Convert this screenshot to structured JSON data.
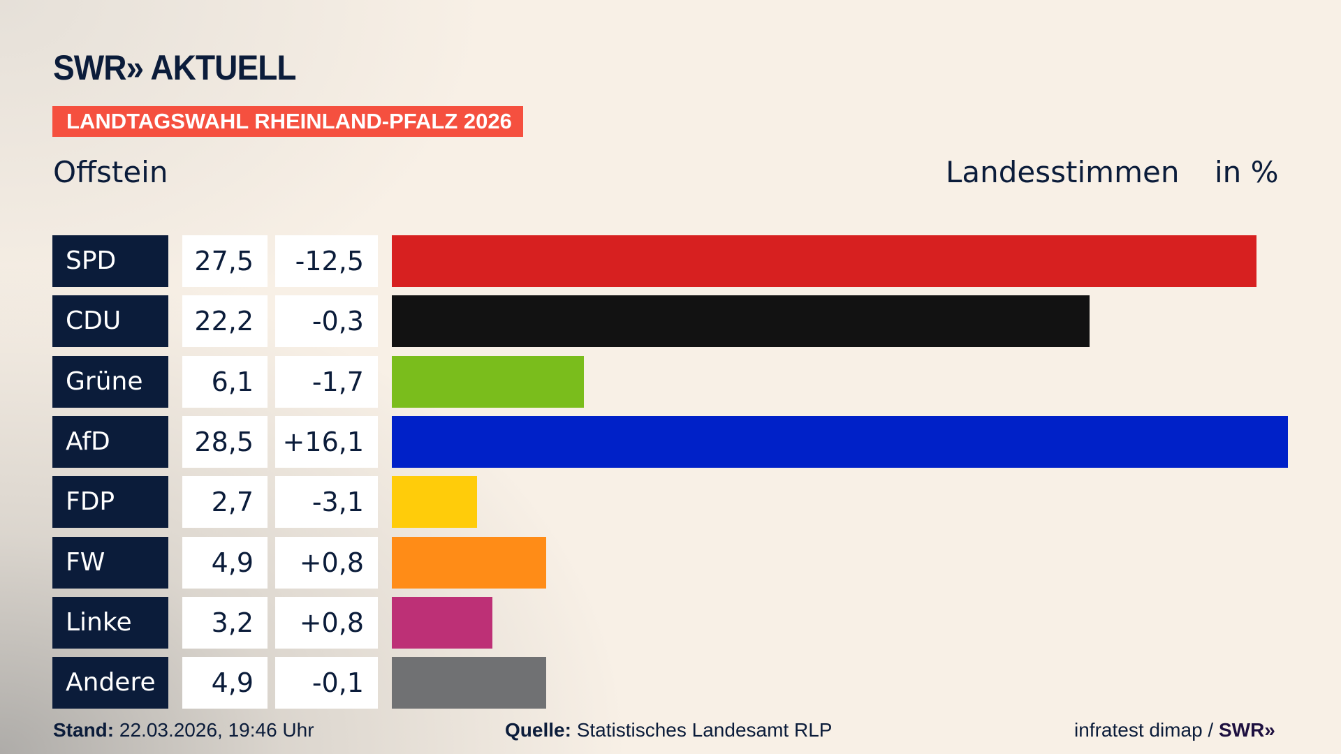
{
  "header": {
    "logo": "SWR» AKTUELL",
    "banner": "LANDTAGSWAHL RHEINLAND-PFALZ 2026",
    "place": "Offstein",
    "measure": "Landesstimmen",
    "unit": "in %"
  },
  "chart_data": {
    "type": "bar",
    "orientation": "horizontal",
    "categories": [
      "SPD",
      "CDU",
      "Grüne",
      "AfD",
      "FDP",
      "FW",
      "Linke",
      "Andere"
    ],
    "values": [
      27.5,
      22.2,
      6.1,
      28.5,
      2.7,
      4.9,
      3.2,
      4.9
    ],
    "value_labels": [
      "27,5",
      "22,2",
      "6,1",
      "28,5",
      "2,7",
      "4,9",
      "3,2",
      "4,9"
    ],
    "diff_labels": [
      "-12,5",
      "-0,3",
      "-1,7",
      "+16,1",
      "-3,1",
      "+0,8",
      "+0,8",
      "-0,1"
    ],
    "colors": [
      "#d72020",
      "#121212",
      "#7abd1c",
      "#0021c8",
      "#ffcc0a",
      "#ff8c17",
      "#bd3076",
      "#707173"
    ],
    "xlim": [
      0,
      28.5
    ]
  },
  "footer": {
    "stand_label": "Stand:",
    "stand_value": "22.03.2026, 19:46 Uhr",
    "source_label": "Quelle:",
    "source_value": "Statistisches Landesamt RLP",
    "credit": "infratest dimap /",
    "credit_logo": "SWR»"
  }
}
